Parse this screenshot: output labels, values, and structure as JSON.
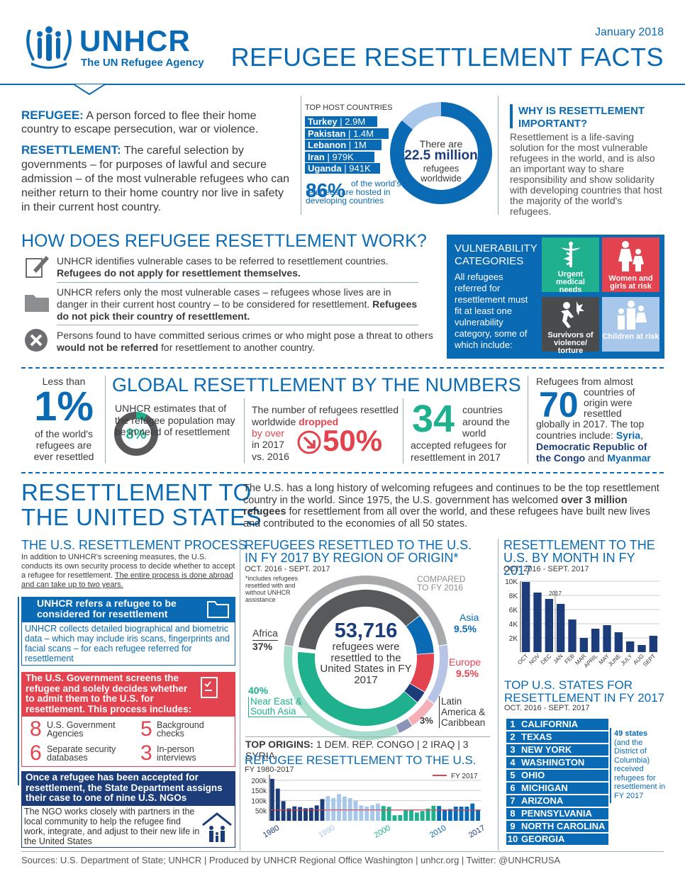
{
  "header": {
    "logo_name": "UNHCR",
    "logo_tag": "The UN Refugee Agency",
    "date": "January 2018",
    "title": "REFUGEE RESETTLEMENT FACTS"
  },
  "defs": {
    "refugee_term": "REFUGEE:",
    "refugee_def": "A person forced to flee their home country to escape persecution, war or violence.",
    "resettlement_term": "RESETTLEMENT:",
    "resettlement_def": "The careful selection by governments – for purposes of lawful and secure admission – of the most vulnerable refugees who can neither return to their home country nor live in safety in their current host country."
  },
  "hosts": {
    "title": "TOP HOST COUNTRIES",
    "items": [
      {
        "country": "Turkey",
        "value": "2.9M"
      },
      {
        "country": "Pakistan",
        "value": "1.4M"
      },
      {
        "country": "Lebanon",
        "value": "1M"
      },
      {
        "country": "Iran",
        "value": "979K"
      },
      {
        "country": "Uganda",
        "value": "941K"
      }
    ],
    "pct": "86%",
    "pct_text": "of the world's refugees are hosted in developing countries",
    "ring_top": "There are",
    "ring_big": "22.5 million",
    "ring_bottom": "refugees worldwide",
    "developing_share": 0.86
  },
  "why": {
    "title": "WHY IS RESETTLEMENT IMPORTANT?",
    "text": "Resettlement is a life-saving solution for the most vulnerable refugees in the world, and is also an important way to share responsibility and show solidarity with developing countries that host the majority of the world's refugees."
  },
  "how": {
    "title": "HOW DOES REFUGEE RESETTLEMENT WORK?",
    "s1a": "UNHCR identifies vulnerable cases to be referred to resettlement countries.",
    "s1b": "Refugees do not apply for resettlement themselves.",
    "s2a": "UNHCR refers only the most vulnerable cases – refugees whose lives are in danger in their current host country – to be considered for resettlement.",
    "s2b": "Refugees do not pick their country of resettlement.",
    "s3a": "Persons found to have committed serious crimes or who might pose a threat to others ",
    "s3b": "would not be referred",
    "s3c": " for resettlement to another country."
  },
  "vuln": {
    "title": "VULNERABILITY CATEGORIES",
    "text": "All refugees referred for resettlement must fit at least one vulnerability category, some of which include:",
    "c1": "Urgent medical needs",
    "c2": "Women and girls at risk",
    "c3": "Survivors of violence/ torture",
    "c4": "Children at risk"
  },
  "numbers": {
    "title": "GLOBAL RESETTLEMENT BY THE NUMBERS",
    "less": "Less than",
    "one": "1%",
    "one_text": "of the world's refugees are ever resettled",
    "est": "UNHCR estimates that of the refugee population may be in need of resettlement",
    "eight": "8%",
    "eight_value": 0.08,
    "drop_a": "The number of refugees resettled worldwide",
    "drop_b": "dropped",
    "drop_c": "by over",
    "drop_d": "in 2017 vs. 2016",
    "fifty": "50%",
    "n34": "34",
    "n34_a": "countries around the world",
    "n34_b": "accepted refugees for resettlement in 2017",
    "r70_a": "Refugees from almost",
    "n70": "70",
    "r70_b": "countries of origin were resettled",
    "r70_c": "globally in 2017. The top countries include:",
    "r70_d": "Syria",
    "r70_e": "Democratic Republic of the Congo",
    "r70_f": " and ",
    "r70_g": "Myanmar"
  },
  "us": {
    "title1": "RESETTLEMENT TO",
    "title2": "THE UNITED STATES",
    "intro_a": "The U.S. has a long history of welcoming refugees and continues to be the top resettlement country in the world. Since 1975, the U.S. government has welcomed ",
    "intro_b": "over 3 million refugees",
    "intro_c": " for resettlement from all over the world, and these refugees have built new lives and contributed to the economies of all 50 states."
  },
  "process": {
    "title": "THE U.S. RESETTLEMENT PROCESS",
    "intro_a": "In addition to UNHCR's screening measures, the U.S. conducts its own security process to decide whether to accept a refugee for resettlement.",
    "intro_b": "The entire process is done abroad and can take up to two years.",
    "step1": "UNHCR refers a refugee to be considered for resettlement",
    "step1_text": "UNHCR collects detailed biographical and biometric data – which may include iris scans, fingerprints and facial scans – for each refugee referred for resettlement",
    "step2": "The U.S. Government screens the refugee and solely decides whether to admit them to the U.S. for resettlement. This process includes:",
    "agencies_n": "8",
    "agencies": "U.S. Government Agencies",
    "checks_n": "5",
    "checks": "Background checks",
    "db_n": "6",
    "db": "Separate security databases",
    "int_n": "3",
    "int": "In-person interviews",
    "step3": "Once a refugee has been accepted for resettlement, the State Department assigns their case to one of nine U.S. NGOs",
    "step3_text": "The NGO works closely with partners in the local community to help the refugee find work, integrate, and adjust to their new life in the United States"
  },
  "region": {
    "title": "REFUGEES RESETTLED TO THE U.S. IN FY 2017 BY REGION OF ORIGIN*",
    "period": "OCT. 2016 - SEPT. 2017",
    "note": "*includes refugees resettled with and without UNHCR assistance",
    "compare": "COMPARED TO FY 2016",
    "center_big": "53,716",
    "center_text": "refugees were resettled to the United States in FY 2017",
    "africa": "Africa",
    "africa_pct": "37%",
    "asia": "Asia",
    "asia_pct": "9.5%",
    "europe": "Europe",
    "europe_pct": "9.5%",
    "latam": "Latin America & Caribbean",
    "latam_pct": "3%",
    "ne": "Near East & South Asia",
    "ne_pct": "40%",
    "top_origins_label": "TOP ORIGINS:",
    "top_origins": "1 DEM. REP. CONGO | 2 IRAQ | 3 SYRIA"
  },
  "chart_data": [
    {
      "type": "bar",
      "title": "RESETTLEMENT TO THE U.S. BY MONTH IN FY 2017",
      "subtitle": "OCT. 2016 - SEPT. 2017",
      "annotation": "2017",
      "categories": [
        "OCT",
        "NOV",
        "DEC",
        "JAN",
        "FEB",
        "MAR",
        "APRIL",
        "MAY",
        "JUNE",
        "JULY",
        "AUG",
        "SEPT"
      ],
      "values": [
        9900,
        8400,
        7500,
        6800,
        4600,
        2000,
        3300,
        3800,
        2800,
        1500,
        1000,
        2300
      ],
      "ylim": [
        0,
        10000
      ],
      "yticks": [
        "2K",
        "4K",
        "6K",
        "8K",
        "10K"
      ],
      "color": "#1c3c7a"
    },
    {
      "type": "bar",
      "title": "REFUGEE RESETTLEMENT TO THE U.S.",
      "subtitle": "FY 1980-2017",
      "legend": "FY 2017",
      "xticks": [
        "1980",
        "1990",
        "2000",
        "2010",
        "2017"
      ],
      "yticks": [
        "50k",
        "100k",
        "150k",
        "200k"
      ],
      "ylim": [
        0,
        210000
      ],
      "x": [
        1980,
        1981,
        1982,
        1983,
        1984,
        1985,
        1986,
        1987,
        1988,
        1989,
        1990,
        1991,
        1992,
        1993,
        1994,
        1995,
        1996,
        1997,
        1998,
        1999,
        2000,
        2001,
        2002,
        2003,
        2004,
        2005,
        2006,
        2007,
        2008,
        2009,
        2010,
        2011,
        2012,
        2013,
        2014,
        2015,
        2016,
        2017
      ],
      "values": [
        207000,
        159000,
        97000,
        61000,
        71000,
        68000,
        62000,
        64000,
        76000,
        107000,
        122000,
        112000,
        132000,
        120000,
        112000,
        99000,
        76000,
        70000,
        77000,
        85000,
        73000,
        69000,
        27000,
        28000,
        52000,
        53000,
        41000,
        48000,
        60000,
        74000,
        73000,
        56000,
        58000,
        70000,
        70000,
        70000,
        85000,
        53716
      ]
    }
  ],
  "states": {
    "title": "TOP U.S. STATES FOR RESETTLEMENT IN FY 2017",
    "period": "OCT. 2016 - SEPT. 2017",
    "items": [
      "CALIFORNIA",
      "TEXAS",
      "NEW YORK",
      "WASHINGTON",
      "OHIO",
      "MICHIGAN",
      "ARIZONA",
      "PENNSYLVANIA",
      "NORTH CAROLINA",
      "GEORGIA"
    ],
    "note_a": "49 states",
    "note_b": "(and the District of Columbia) received refugees for resettlement in FY 2017"
  },
  "footer": "Sources: U.S. Department of State; UNHCR  |  Produced by UNHCR Regional Office Washington  |  unhcr.org  |  Twitter: @UNHCRUSA",
  "colors": {
    "blue": "#0a6ab3",
    "navy": "#1c3c7a",
    "red": "#e2434f",
    "teal": "#1fb08e",
    "gray": "#6d6e70"
  }
}
